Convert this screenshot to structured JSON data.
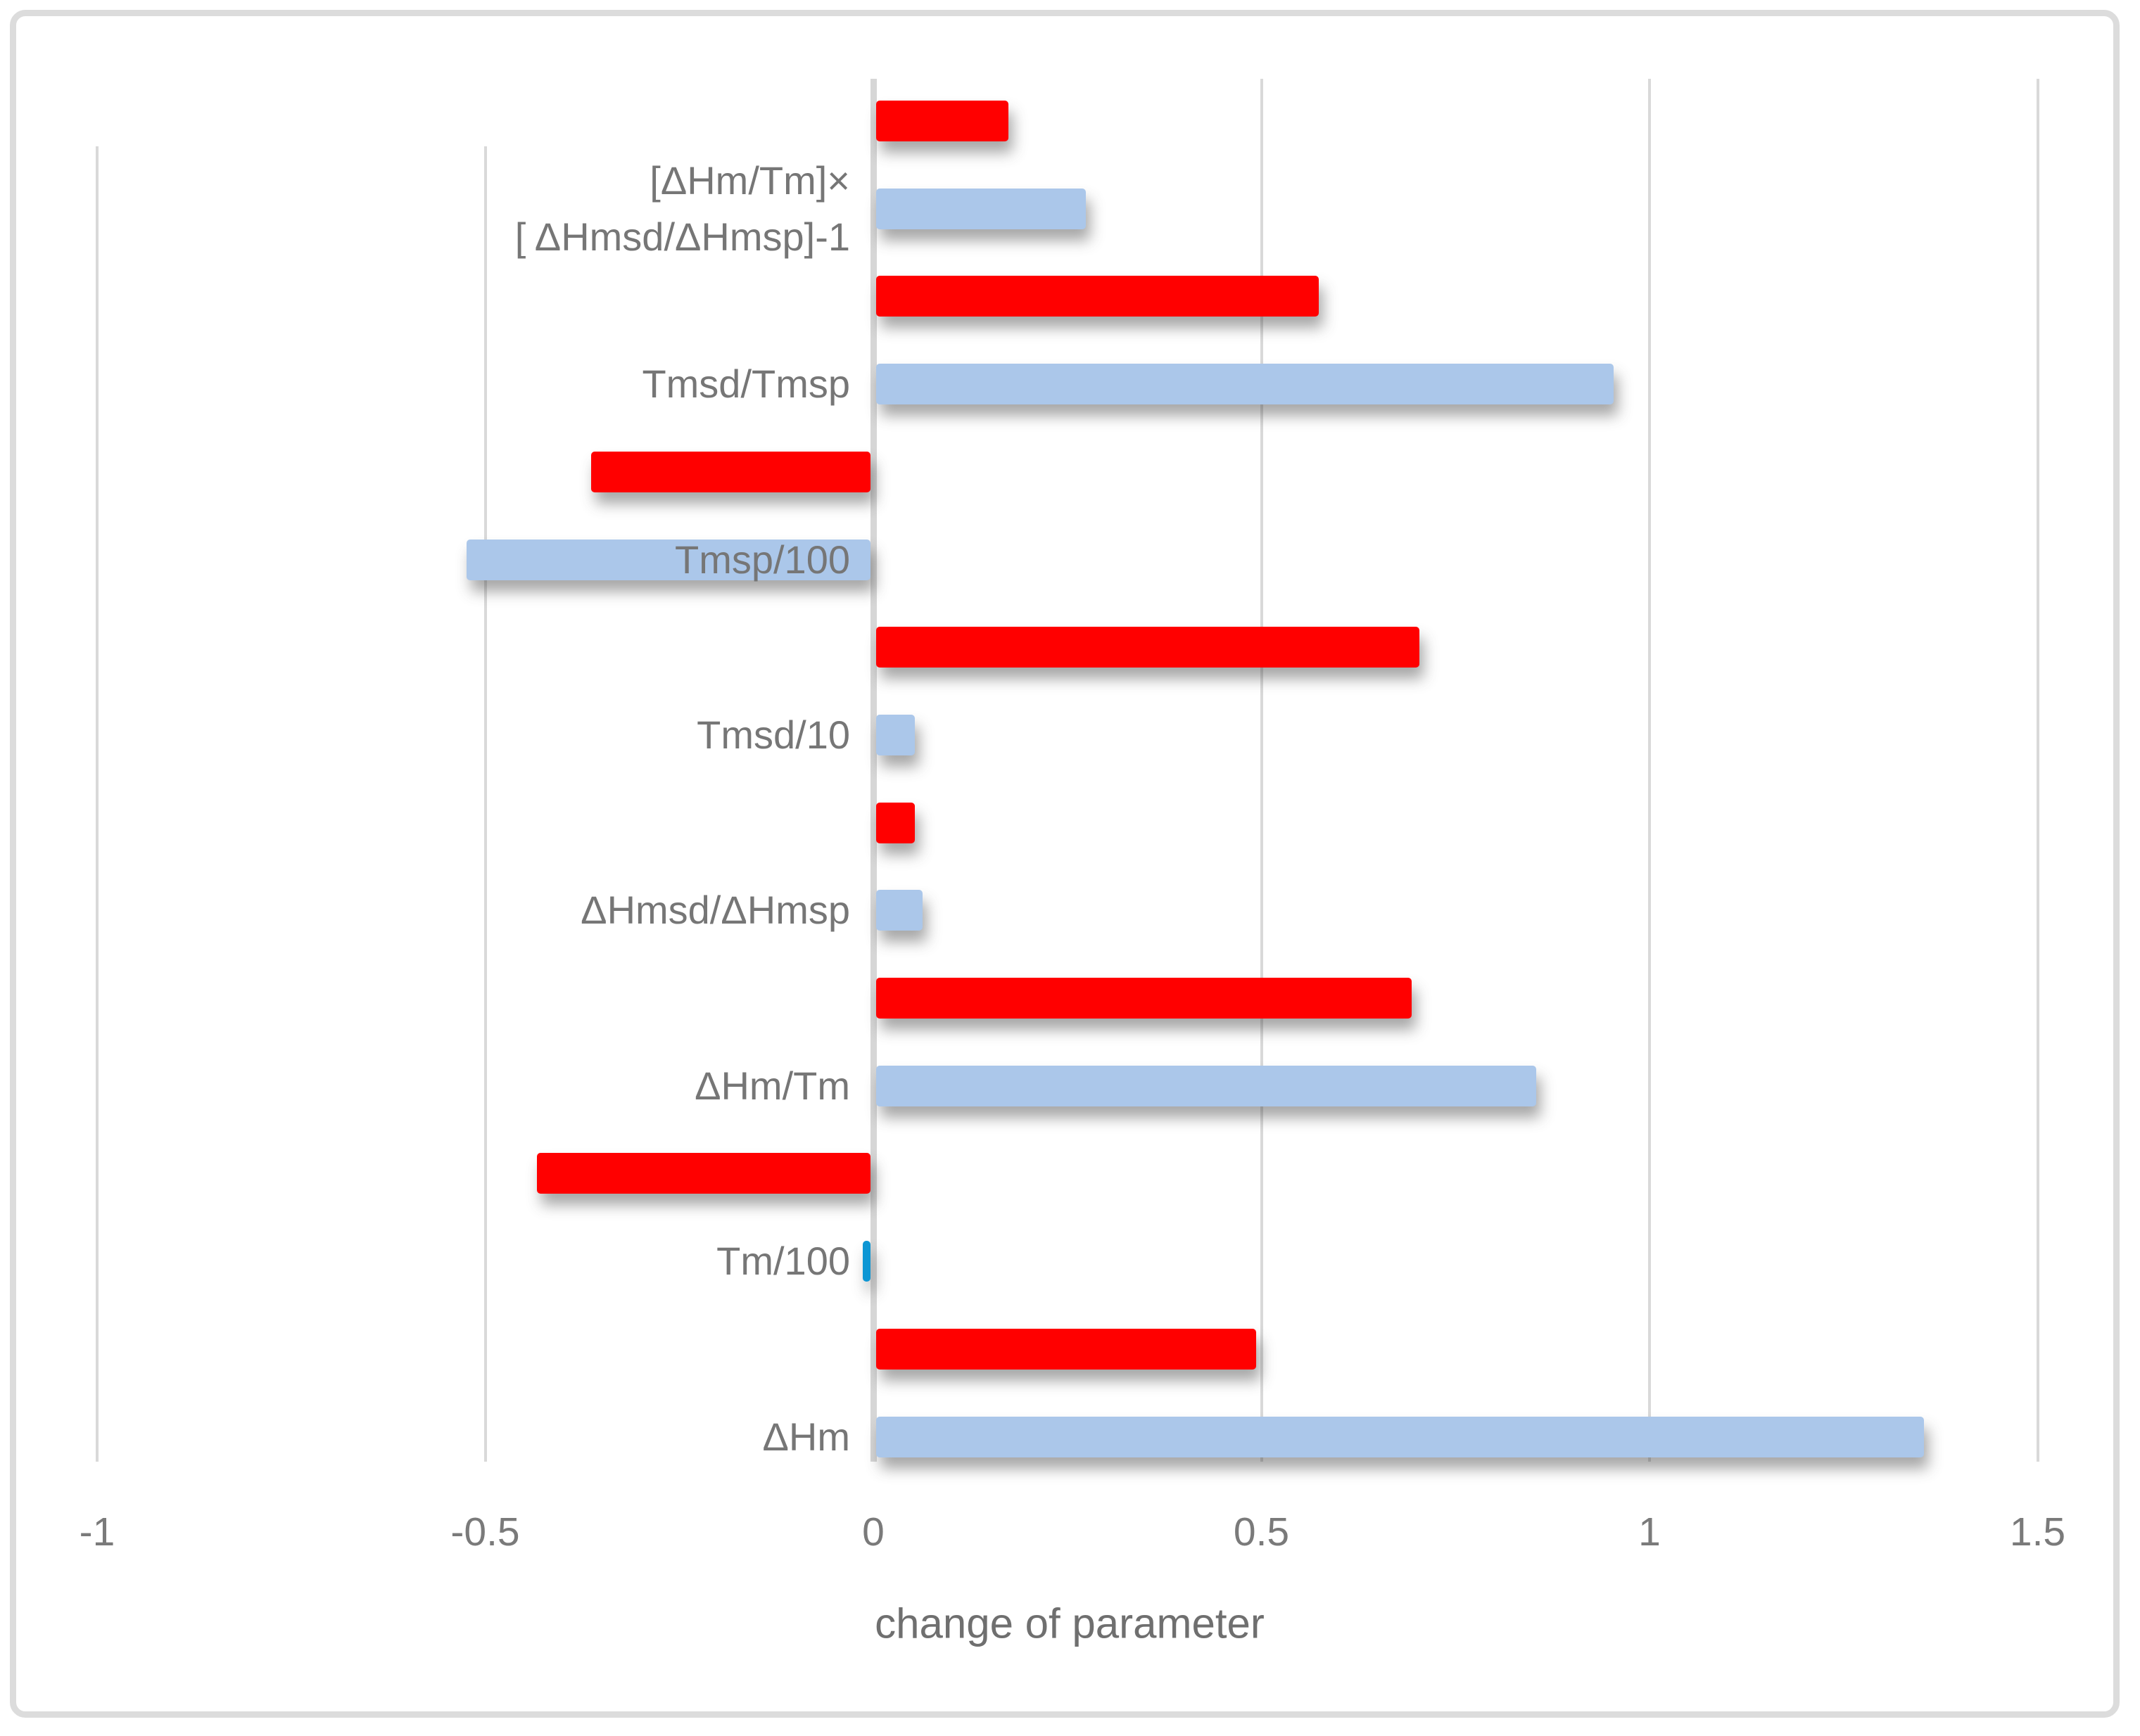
{
  "chart_data": {
    "type": "bar",
    "orientation": "horizontal",
    "title": "",
    "xlabel": "change of parameter",
    "ylabel": "",
    "xlim": [
      -1,
      1.5
    ],
    "grid": true,
    "legend": false,
    "x_ticks": [
      {
        "label": "-1",
        "value": -1
      },
      {
        "label": "-0.5",
        "value": -0.5
      },
      {
        "label": "0",
        "value": 0
      },
      {
        "label": "0.5",
        "value": 0.5
      },
      {
        "label": "1",
        "value": 1
      },
      {
        "label": "1.5",
        "value": 1.5
      }
    ],
    "categories": [
      "[ΔHm/Tm]×\n[ ΔHmsd/ΔHmsp]-1",
      "Tmsd/Tmsp",
      "Tmsp/100",
      "Tmsd/10",
      "ΔHmsd/ΔHmsp",
      "ΔHm/Tm",
      "Tm/100",
      "ΔHm"
    ],
    "series": [
      {
        "name": "red-series",
        "color": "#ff0000",
        "values": [
          0.17,
          0.57,
          -0.36,
          0.7,
          0.05,
          0.69,
          -0.43,
          0.49
        ]
      },
      {
        "name": "blue-series",
        "color": "#abc7ea",
        "thin_bar_color": "#0d96d4",
        "values": [
          0.27,
          0.95,
          -0.52,
          0.05,
          0.06,
          0.85,
          -0.01,
          1.35
        ]
      }
    ],
    "bar_arrangement": "per category: red bar on top, blue bar below; category label centered on blue bar"
  }
}
